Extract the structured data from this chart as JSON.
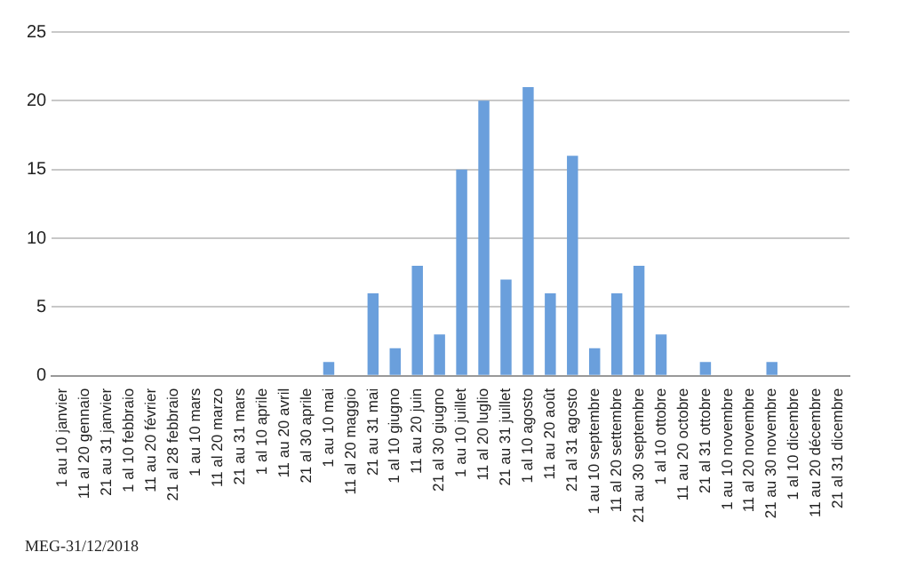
{
  "chart_data": {
    "type": "bar",
    "categories": [
      "1 au 10 janvier",
      "11 al 20 gennaio",
      "21 au 31 janvier",
      "1 al 10 febbraio",
      "11 au 20 février",
      "21 al 28 febbraio",
      "1 au 10 mars",
      "11 al 20 marzo",
      "21 au 31 mars",
      "1 al 10 aprile",
      "11 au 20 avril",
      "21 al 30 aprile",
      "1 au 10 mai",
      "11 al 20 maggio",
      "21 au 31 mai",
      "1 al 10 giugno",
      "11 au 20 juin",
      "21 al 30 giugno",
      "1 au 10 juillet",
      "11 al 20 luglio",
      "21 au 31 juillet",
      "1 al 10 agosto",
      "11 au 20 août",
      "21 al 31 agosto",
      "1 au 10 septembre",
      "11 al 20 settembre",
      "21 au 30 septembre",
      "1 al 10 ottobre",
      "11 au 20 octobre",
      "21 al 31 ottobre",
      "1 au 10 novembre",
      "11 al 20 novembre",
      "21 au 30 novembre",
      "1 al 10 dicembre",
      "11 au 20 décembre",
      "21 al 31 dicembre"
    ],
    "values": [
      0,
      0,
      0,
      0,
      0,
      0,
      0,
      0,
      0,
      0,
      0,
      0,
      1,
      0,
      6,
      2,
      8,
      3,
      15,
      20,
      7,
      21,
      6,
      16,
      2,
      6,
      8,
      3,
      0,
      1,
      0,
      0,
      1,
      0,
      0,
      0
    ],
    "color": "#6a9fdc",
    "ylim": [
      0,
      25
    ],
    "yticks": [
      0,
      5,
      10,
      15,
      20,
      25
    ],
    "grid": "y",
    "legend": false,
    "annotations": [
      "MEG-31/12/2018"
    ]
  }
}
